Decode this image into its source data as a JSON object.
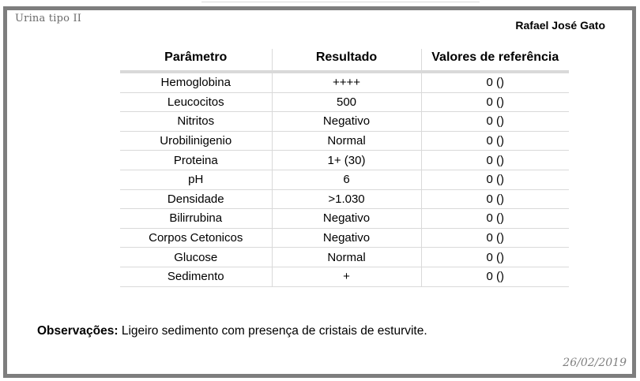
{
  "page": {
    "title": "Urina tipo II",
    "patient_name": "Rafael José Gato",
    "date": "26/02/2019"
  },
  "table": {
    "headers": [
      "Parâmetro",
      "Resultado",
      "Valores de referência"
    ],
    "rows": [
      {
        "parametro": "Hemoglobina",
        "resultado": "++++",
        "referencia": "0 ()"
      },
      {
        "parametro": "Leucocitos",
        "resultado": "500",
        "referencia": "0 ()"
      },
      {
        "parametro": "Nitritos",
        "resultado": "Negativo",
        "referencia": "0 ()"
      },
      {
        "parametro": "Urobilinigenio",
        "resultado": "Normal",
        "referencia": "0 ()"
      },
      {
        "parametro": "Proteina",
        "resultado": "1+ (30)",
        "referencia": "0 ()"
      },
      {
        "parametro": "pH",
        "resultado": "6",
        "referencia": "0 ()"
      },
      {
        "parametro": "Densidade",
        "resultado": ">1.030",
        "referencia": "0 ()"
      },
      {
        "parametro": "Bilirrubina",
        "resultado": "Negativo",
        "referencia": "0 ()"
      },
      {
        "parametro": "Corpos Cetonicos",
        "resultado": "Negativo",
        "referencia": "0 ()"
      },
      {
        "parametro": "Glucose",
        "resultado": "Normal",
        "referencia": "0 ()"
      },
      {
        "parametro": "Sedimento",
        "resultado": "+",
        "referencia": "0 ()"
      }
    ]
  },
  "observations": {
    "label": "Observações:",
    "text": " Ligeiro sedimento com presença de cristais de esturvite."
  },
  "colors": {
    "frame_border": "#7e7e7e",
    "table_lines": "#d9d9d9",
    "title_text": "#6a6a6a",
    "date_text": "#808080"
  }
}
